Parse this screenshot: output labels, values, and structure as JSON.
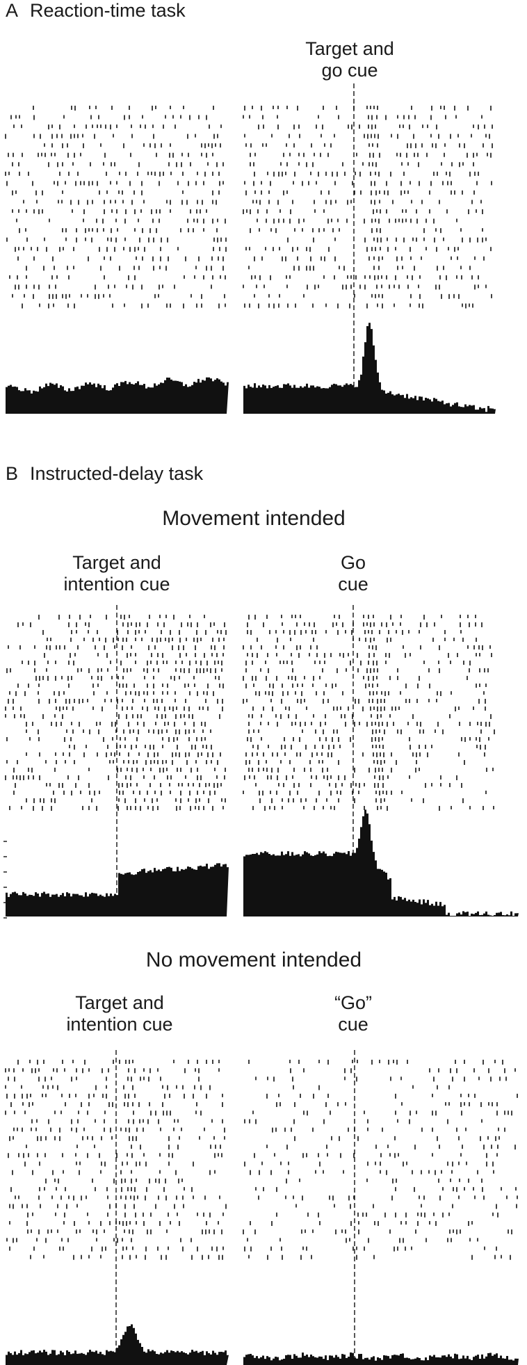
{
  "figure": {
    "sectionA": {
      "letter": "A",
      "title": "Reaction-time task",
      "right_cue": "Target and\ngo cue"
    },
    "sectionB": {
      "letter": "B",
      "title": "Instructed-delay task",
      "movement": {
        "heading": "Movement intended",
        "left_cue": "Target and\nintention cue",
        "right_cue": "Go\ncue"
      },
      "no_movement": {
        "heading": "No movement intended",
        "left_cue": "Target and\nintention cue",
        "right_cue": "“Go”\ncue"
      }
    }
  },
  "colors": {
    "ink": "#111111",
    "background": "#ffffff"
  }
}
